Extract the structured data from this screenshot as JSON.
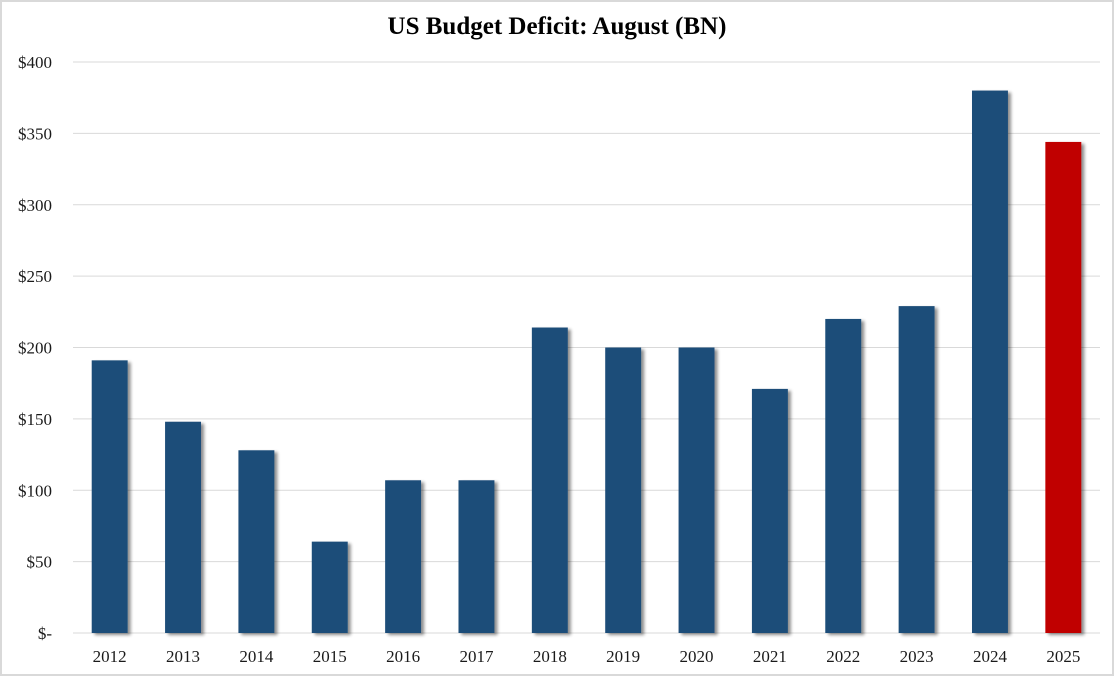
{
  "chart_data": {
    "type": "bar",
    "title": "US Budget Deficit: August  (BN)",
    "xlabel": "",
    "ylabel": "",
    "categories": [
      "2012",
      "2013",
      "2014",
      "2015",
      "2016",
      "2017",
      "2018",
      "2019",
      "2020",
      "2021",
      "2022",
      "2023",
      "2024",
      "2025"
    ],
    "values": [
      191,
      148,
      128,
      64,
      107,
      107,
      214,
      200,
      200,
      171,
      220,
      229,
      380,
      344
    ],
    "ylim": [
      0,
      400
    ],
    "yticks": [
      0,
      50,
      100,
      150,
      200,
      250,
      300,
      350,
      400
    ],
    "ytick_labels": [
      "$-",
      "$50",
      "$100",
      "$150",
      "$200",
      "$250",
      "$300",
      "$350",
      "$400"
    ],
    "grid": true,
    "legend": "none",
    "colors": {
      "default": "#1F4E79",
      "highlight": "#C00000",
      "highlight_category": "2025",
      "grid": "#d9d9d9"
    }
  }
}
